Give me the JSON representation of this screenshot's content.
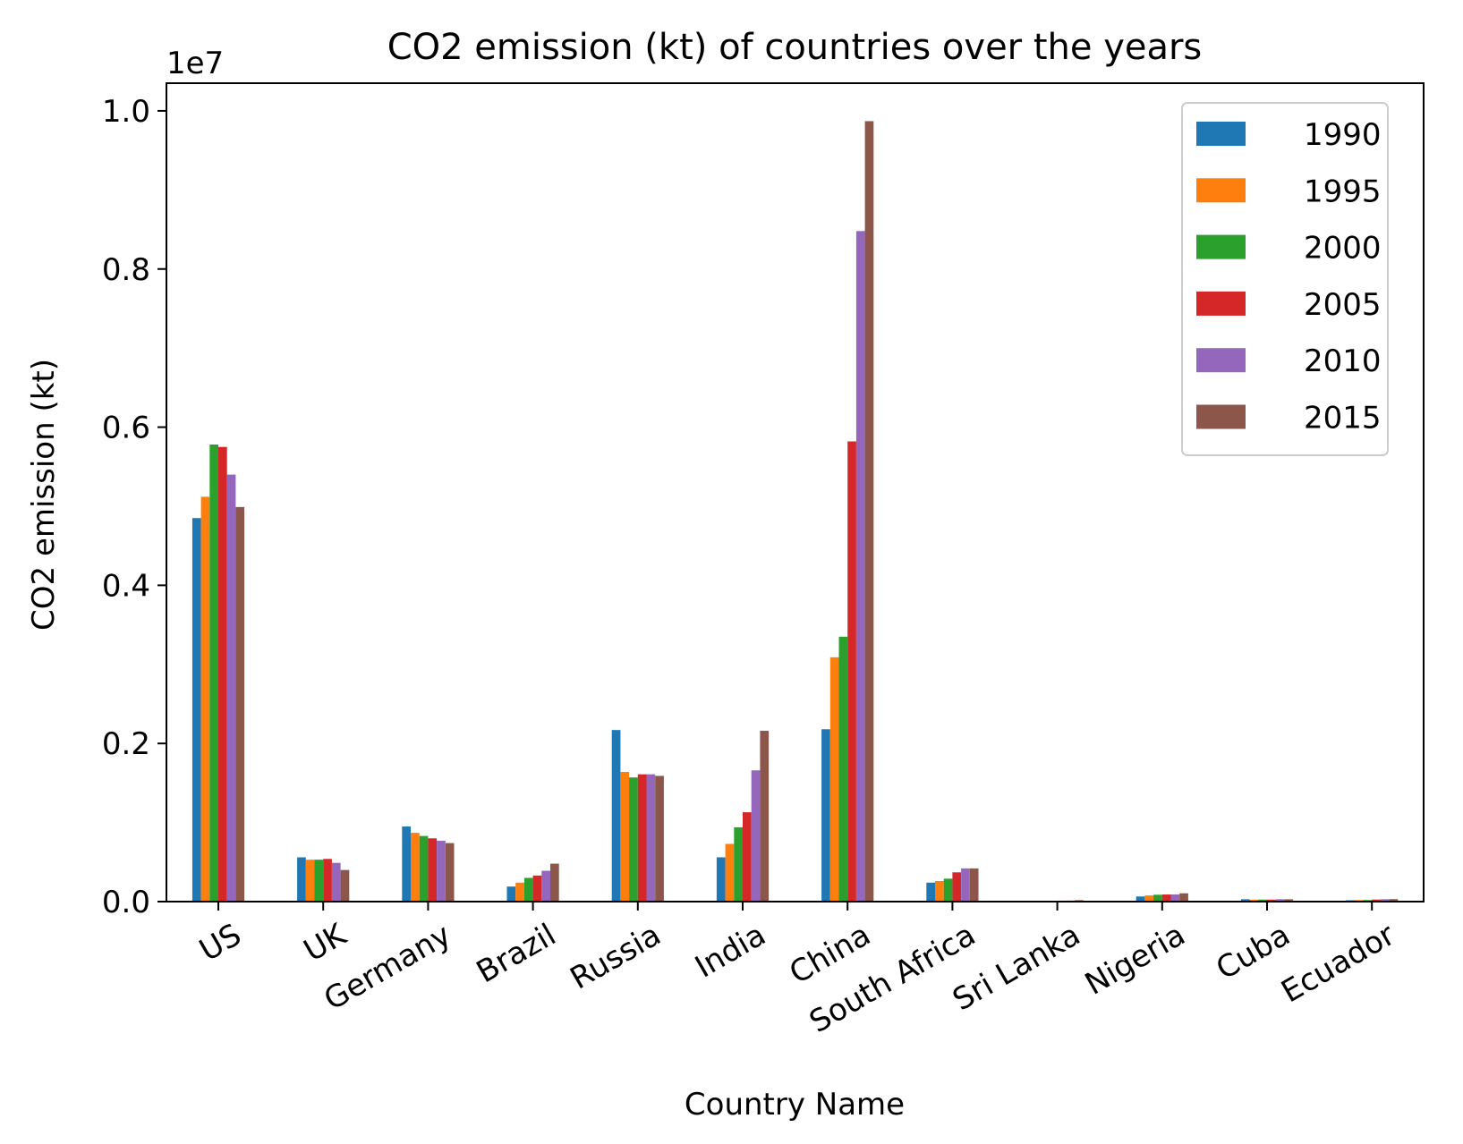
{
  "chart_data": {
    "type": "bar",
    "title": "CO2 emission (kt) of countries over the years",
    "xlabel": "Country Name",
    "ylabel": "CO2 emission (kt)",
    "y_scale_label": "1e7",
    "ylim": [
      0,
      10350000
    ],
    "yticks": [
      0,
      2000000,
      4000000,
      6000000,
      8000000,
      10000000
    ],
    "ytick_labels": [
      "0.0",
      "0.2",
      "0.4",
      "0.6",
      "0.8",
      "1.0"
    ],
    "legend_position": "top-right",
    "grid": false,
    "categories": [
      "US",
      "UK",
      "Germany",
      "Brazil",
      "Russia",
      "India",
      "China",
      "South Africa",
      "Sri Lanka",
      "Nigeria",
      "Cuba",
      "Ecuador"
    ],
    "series": [
      {
        "name": "1990",
        "color": "#1f77b4",
        "values": [
          4850000,
          560000,
          950000,
          190000,
          2170000,
          560000,
          2180000,
          240000,
          4000,
          65000,
          30000,
          17000
        ]
      },
      {
        "name": "1995",
        "color": "#ff7f0e",
        "values": [
          5120000,
          530000,
          870000,
          240000,
          1640000,
          730000,
          3090000,
          260000,
          5000,
          78000,
          24000,
          19000
        ]
      },
      {
        "name": "2000",
        "color": "#2ca02c",
        "values": [
          5780000,
          530000,
          830000,
          300000,
          1570000,
          940000,
          3350000,
          290000,
          10000,
          87000,
          26000,
          20000
        ]
      },
      {
        "name": "2005",
        "color": "#d62728",
        "values": [
          5750000,
          540000,
          800000,
          330000,
          1610000,
          1130000,
          5820000,
          370000,
          12000,
          90000,
          25000,
          26000
        ]
      },
      {
        "name": "2010",
        "color": "#9467bd",
        "values": [
          5400000,
          490000,
          770000,
          390000,
          1610000,
          1660000,
          8480000,
          420000,
          13000,
          90000,
          30000,
          30000
        ]
      },
      {
        "name": "2015",
        "color": "#8c564b",
        "values": [
          4990000,
          400000,
          740000,
          480000,
          1590000,
          2160000,
          9870000,
          420000,
          18000,
          105000,
          29000,
          31000
        ]
      }
    ]
  }
}
